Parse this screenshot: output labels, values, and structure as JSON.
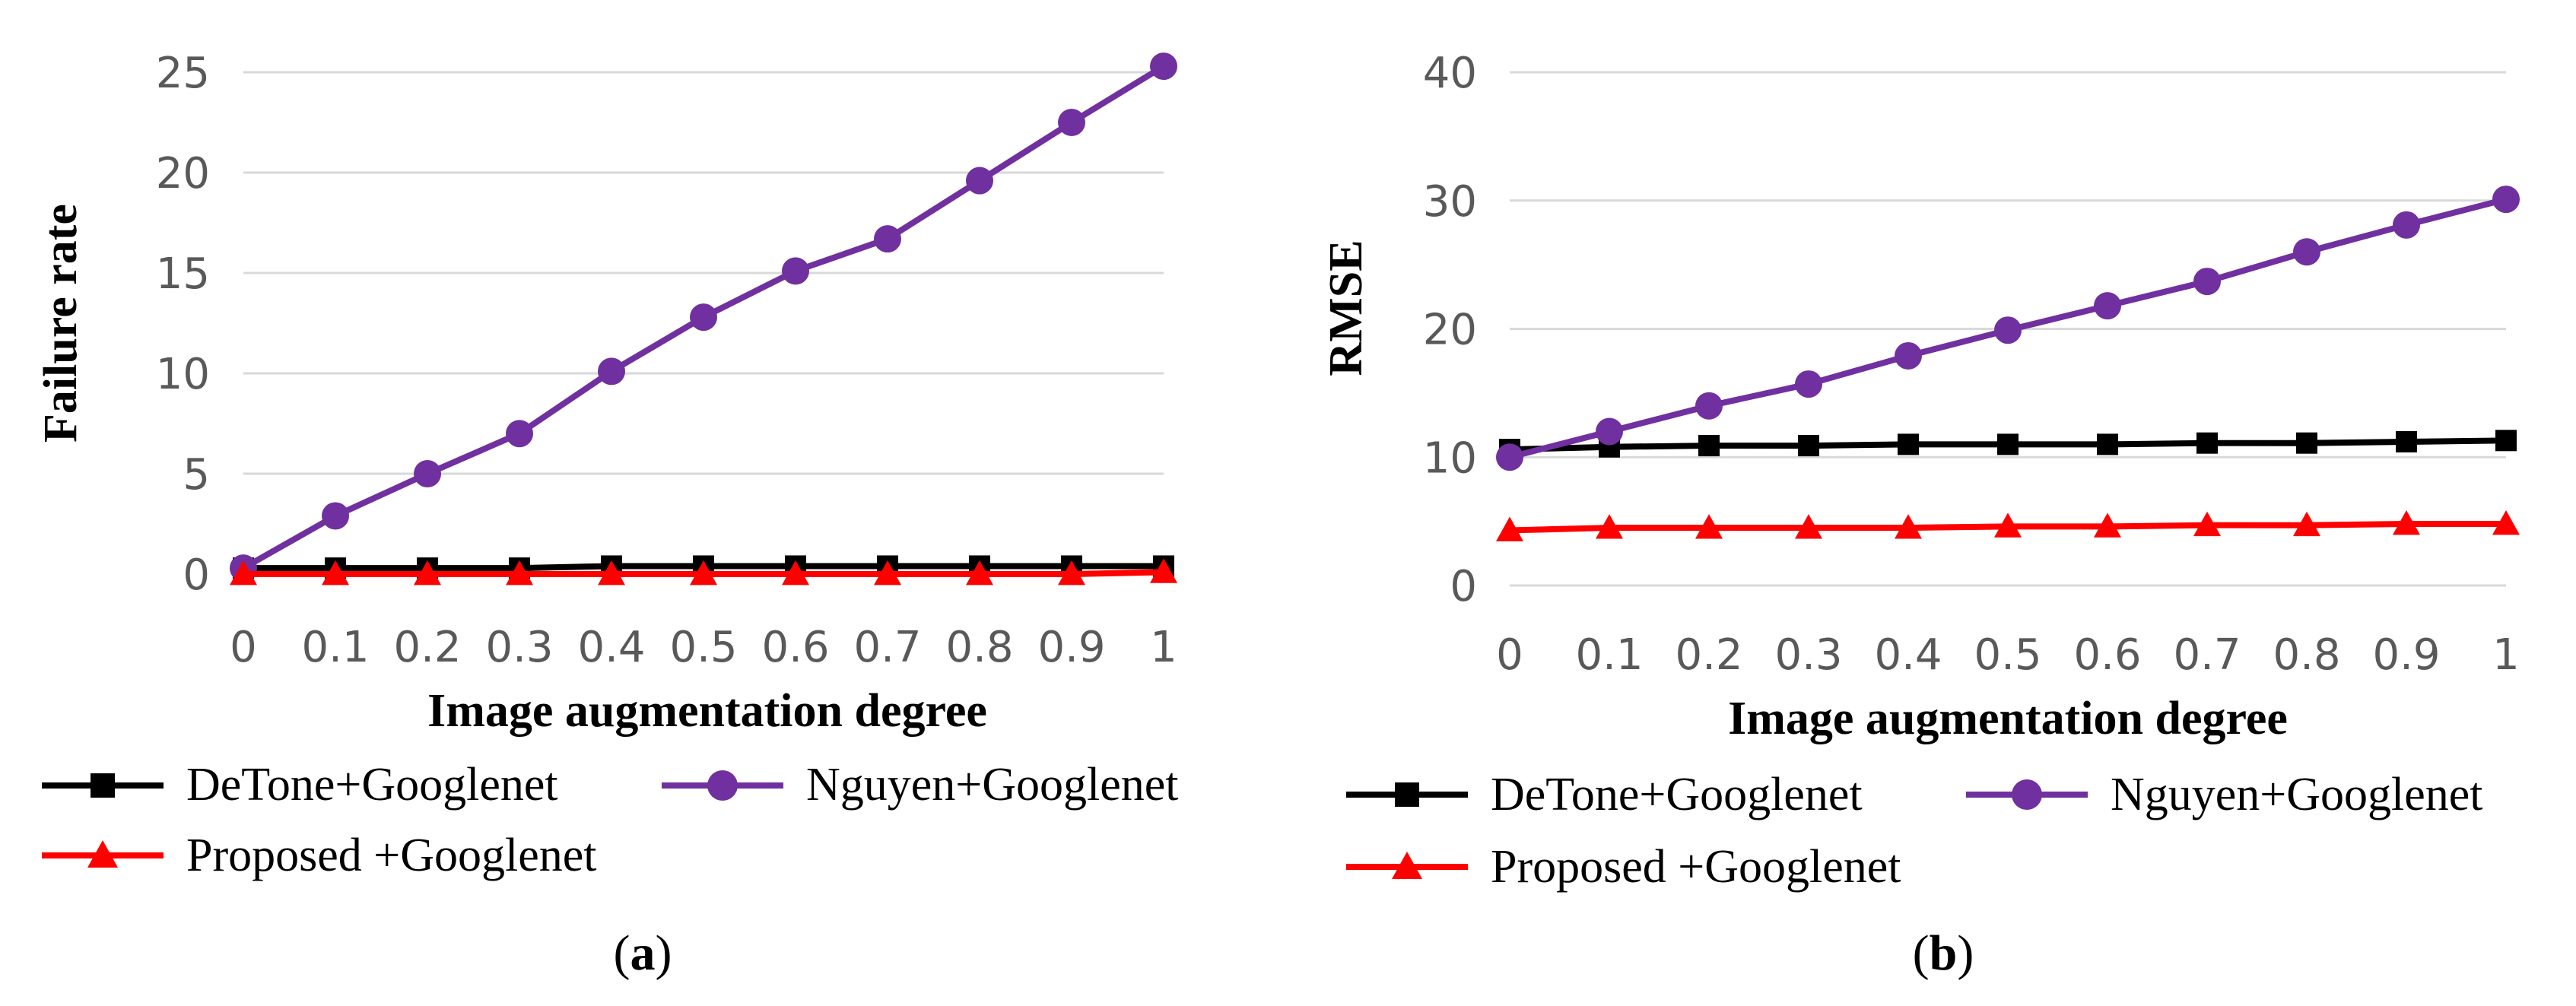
{
  "chart_data": [
    {
      "id": "a",
      "type": "line",
      "panel_label": "a",
      "title": "",
      "xlabel": "Image augmentation degree",
      "ylabel": "Failure rate",
      "categories": [
        "0",
        "0.1",
        "0.2",
        "0.3",
        "0.4",
        "0.5",
        "0.6",
        "0.7",
        "0.8",
        "0.9",
        "1"
      ],
      "ylim": [
        0,
        25
      ],
      "yticks": [
        "0",
        "5",
        "10",
        "15",
        "20",
        "25"
      ],
      "grid": true,
      "legend_position": "bottom",
      "series": [
        {
          "name": "DeTone+Googlenet",
          "marker": "square",
          "color": "#000000",
          "values": [
            0.3,
            0.3,
            0.3,
            0.3,
            0.4,
            0.4,
            0.4,
            0.4,
            0.4,
            0.4,
            0.4
          ]
        },
        {
          "name": "Nguyen+Googlenet",
          "marker": "circle",
          "color": "#7030A0",
          "values": [
            0.3,
            2.9,
            5.0,
            7.0,
            10.1,
            12.8,
            15.1,
            16.7,
            19.6,
            22.5,
            25.3
          ]
        },
        {
          "name": "Proposed +Googlenet",
          "marker": "triangle",
          "color": "#FF0000",
          "values": [
            0.0,
            0.0,
            0.0,
            0.0,
            0.0,
            0.0,
            0.0,
            0.0,
            0.0,
            0.0,
            0.1
          ]
        }
      ]
    },
    {
      "id": "b",
      "type": "line",
      "panel_label": "b",
      "title": "",
      "xlabel": "Image augmentation degree",
      "ylabel": "RMSE",
      "categories": [
        "0",
        "0.1",
        "0.2",
        "0.3",
        "0.4",
        "0.5",
        "0.6",
        "0.7",
        "0.8",
        "0.9",
        "1"
      ],
      "ylim": [
        0,
        40
      ],
      "yticks": [
        "0",
        "10",
        "20",
        "30",
        "40"
      ],
      "grid": true,
      "legend_position": "bottom",
      "series": [
        {
          "name": "DeTone+Googlenet",
          "marker": "square",
          "color": "#000000",
          "values": [
            10.6,
            10.8,
            10.9,
            10.9,
            11.0,
            11.0,
            11.0,
            11.1,
            11.1,
            11.2,
            11.3
          ]
        },
        {
          "name": "Nguyen+Googlenet",
          "marker": "circle",
          "color": "#7030A0",
          "values": [
            10.0,
            12.0,
            14.0,
            15.7,
            17.9,
            19.9,
            21.8,
            23.7,
            26.0,
            28.1,
            30.1
          ]
        },
        {
          "name": "Proposed +Googlenet",
          "marker": "triangle",
          "color": "#FF0000",
          "values": [
            4.3,
            4.5,
            4.5,
            4.5,
            4.5,
            4.6,
            4.6,
            4.7,
            4.7,
            4.8,
            4.8
          ]
        }
      ]
    }
  ]
}
